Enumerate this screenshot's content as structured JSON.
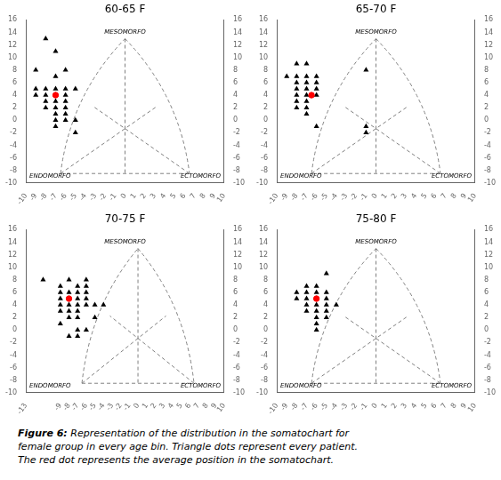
{
  "chart_data": [
    {
      "type": "scatter",
      "title": "60-65 F",
      "grid": false,
      "xlim": [
        -10,
        10
      ],
      "ylim": [
        -10,
        16
      ],
      "y2lim": [
        -10,
        16
      ],
      "xticks": [
        -10,
        -9,
        -8,
        -7,
        -6,
        -5,
        -4,
        -3,
        -2,
        -1,
        0,
        1,
        2,
        3,
        4,
        5,
        6,
        7,
        8,
        9,
        10
      ],
      "yticks": [
        -10,
        -8,
        -6,
        -4,
        -2,
        0,
        2,
        4,
        6,
        8,
        10,
        12,
        14,
        16
      ],
      "y2ticks": [
        -10,
        -8,
        -6,
        -4,
        -2,
        0,
        2,
        4,
        6,
        8,
        10,
        12,
        14,
        16
      ],
      "annotations": [
        "MESOMORFO",
        "ENDOMORFO",
        "ECTOMORFO"
      ],
      "series": [
        {
          "type": "bezier",
          "color": "gray",
          "line_style": "dashed",
          "values": [
            [
              -6.5,
              -8.5
            ],
            [
              -5.5,
              4
            ],
            [
              0,
              13
            ]
          ]
        },
        {
          "type": "bezier",
          "color": "gray",
          "line_style": "dashed",
          "values": [
            [
              0,
              13
            ],
            [
              5.5,
              4
            ],
            [
              6.5,
              -8.5
            ]
          ]
        },
        {
          "type": "line",
          "color": "gray",
          "line_style": "dashed",
          "values": [
            [
              -6.5,
              -8.5
            ],
            [
              6.5,
              -8.5
            ]
          ]
        },
        {
          "type": "line",
          "color": "gray",
          "line_style": "dashed",
          "values": [
            [
              0,
              13
            ],
            [
              0,
              -8.5
            ]
          ]
        },
        {
          "type": "line",
          "color": "gray",
          "line_style": "dashed",
          "values": [
            [
              -6.5,
              -8.5
            ],
            [
              3.25,
              2.25
            ]
          ]
        },
        {
          "type": "line",
          "color": "gray",
          "line_style": "dashed",
          "values": [
            [
              6.5,
              -8.5
            ],
            [
              -3.25,
              2.25
            ]
          ]
        },
        {
          "type": "scatter",
          "color": "black",
          "marker": "triangle",
          "values": [
            [
              -8,
              13
            ],
            [
              -7,
              11
            ],
            [
              -9,
              8
            ],
            [
              -7,
              7
            ],
            [
              -6,
              8
            ],
            [
              -9,
              5
            ],
            [
              -8,
              5
            ],
            [
              -7,
              5
            ],
            [
              -6,
              5
            ],
            [
              -5,
              5
            ],
            [
              -9,
              4
            ],
            [
              -8,
              4
            ],
            [
              -7,
              4
            ],
            [
              -6,
              4
            ],
            [
              -8,
              3
            ],
            [
              -7,
              3
            ],
            [
              -6,
              3
            ],
            [
              -8,
              2
            ],
            [
              -7,
              2
            ],
            [
              -6,
              2
            ],
            [
              -7,
              1
            ],
            [
              -6,
              1
            ],
            [
              -7,
              0
            ],
            [
              -6,
              0
            ],
            [
              -5,
              0
            ],
            [
              -7,
              -1
            ],
            [
              -5,
              -2
            ]
          ]
        },
        {
          "type": "scatter",
          "color": "red",
          "marker": "circle",
          "values": [
            [
              -7,
              4
            ]
          ]
        }
      ]
    },
    {
      "type": "scatter",
      "title": "65-70 F",
      "grid": false,
      "xlim": [
        -10,
        10
      ],
      "ylim": [
        -10,
        16
      ],
      "y2lim": [
        -10,
        16
      ],
      "xticks": [
        -10,
        -9,
        -8,
        -7,
        -6,
        -5,
        -4,
        -3,
        -2,
        -1,
        0,
        1,
        2,
        3,
        4,
        5,
        6,
        7,
        8,
        9,
        10
      ],
      "yticks": [
        -10,
        -8,
        -6,
        -4,
        -2,
        0,
        2,
        4,
        6,
        8,
        10,
        12,
        14,
        16
      ],
      "y2ticks": [
        -10,
        -8,
        -6,
        -4,
        -2,
        0,
        2,
        4,
        6,
        8,
        10,
        12,
        14,
        16
      ],
      "annotations": [
        "MESOMORFO",
        "ENDOMORFO",
        "ECTOMORFO"
      ],
      "series": [
        {
          "type": "bezier",
          "color": "gray",
          "line_style": "dashed",
          "values": [
            [
              -6.5,
              -8.5
            ],
            [
              -5.5,
              4
            ],
            [
              0,
              13
            ]
          ]
        },
        {
          "type": "bezier",
          "color": "gray",
          "line_style": "dashed",
          "values": [
            [
              0,
              13
            ],
            [
              5.5,
              4
            ],
            [
              6.5,
              -8.5
            ]
          ]
        },
        {
          "type": "line",
          "color": "gray",
          "line_style": "dashed",
          "values": [
            [
              -6.5,
              -8.5
            ],
            [
              6.5,
              -8.5
            ]
          ]
        },
        {
          "type": "line",
          "color": "gray",
          "line_style": "dashed",
          "values": [
            [
              0,
              13
            ],
            [
              0,
              -8.5
            ]
          ]
        },
        {
          "type": "line",
          "color": "gray",
          "line_style": "dashed",
          "values": [
            [
              -6.5,
              -8.5
            ],
            [
              3.25,
              2.25
            ]
          ]
        },
        {
          "type": "line",
          "color": "gray",
          "line_style": "dashed",
          "values": [
            [
              6.5,
              -8.5
            ],
            [
              -3.25,
              2.25
            ]
          ]
        },
        {
          "type": "scatter",
          "color": "black",
          "marker": "triangle",
          "values": [
            [
              -8,
              9
            ],
            [
              -7,
              9
            ],
            [
              -9,
              7
            ],
            [
              -8,
              7
            ],
            [
              -7,
              7
            ],
            [
              -6,
              7
            ],
            [
              -8,
              6
            ],
            [
              -7,
              6
            ],
            [
              -6,
              6
            ],
            [
              -8,
              5
            ],
            [
              -7,
              5
            ],
            [
              -6,
              5
            ],
            [
              -8,
              4
            ],
            [
              -7,
              4
            ],
            [
              -6,
              4
            ],
            [
              -8,
              3
            ],
            [
              -7,
              3
            ],
            [
              -8,
              2
            ],
            [
              -7,
              2
            ],
            [
              -7,
              1
            ],
            [
              -6,
              -1
            ],
            [
              -1,
              8
            ],
            [
              -1,
              -1
            ],
            [
              -1,
              -2
            ]
          ]
        },
        {
          "type": "scatter",
          "color": "red",
          "marker": "circle",
          "values": [
            [
              -6.5,
              4
            ]
          ]
        }
      ]
    },
    {
      "type": "scatter",
      "title": "70-75 F",
      "grid": false,
      "xlim": [
        -13,
        10
      ],
      "ylim": [
        -10,
        16
      ],
      "y2lim": [
        -10,
        16
      ],
      "xticks": [
        -13,
        -9,
        -8,
        -7,
        -6,
        -5,
        -4,
        -3,
        -2,
        -1,
        0,
        1,
        2,
        3,
        4,
        5,
        6,
        7,
        8,
        9,
        10
      ],
      "yticks": [
        -10,
        -8,
        -6,
        -4,
        -2,
        0,
        2,
        4,
        6,
        8,
        10,
        12,
        14,
        16
      ],
      "y2ticks": [
        -10,
        -8,
        -6,
        -4,
        -2,
        0,
        2,
        4,
        6,
        8,
        10,
        12,
        14,
        16
      ],
      "annotations": [
        "MESOMORFO",
        "ENDOMORFO",
        "ECTOMORFO"
      ],
      "series": [
        {
          "type": "bezier",
          "color": "gray",
          "line_style": "dashed",
          "values": [
            [
              -6.5,
              -8.5
            ],
            [
              -5.5,
              4
            ],
            [
              0,
              13
            ]
          ]
        },
        {
          "type": "bezier",
          "color": "gray",
          "line_style": "dashed",
          "values": [
            [
              0,
              13
            ],
            [
              5.5,
              4
            ],
            [
              6.5,
              -8.5
            ]
          ]
        },
        {
          "type": "line",
          "color": "gray",
          "line_style": "dashed",
          "values": [
            [
              -6.5,
              -8.5
            ],
            [
              6.5,
              -8.5
            ]
          ]
        },
        {
          "type": "line",
          "color": "gray",
          "line_style": "dashed",
          "values": [
            [
              0,
              13
            ],
            [
              0,
              -8.5
            ]
          ]
        },
        {
          "type": "line",
          "color": "gray",
          "line_style": "dashed",
          "values": [
            [
              -6.5,
              -8.5
            ],
            [
              3.25,
              2.25
            ]
          ]
        },
        {
          "type": "line",
          "color": "gray",
          "line_style": "dashed",
          "values": [
            [
              6.5,
              -8.5
            ],
            [
              -3.25,
              2.25
            ]
          ]
        },
        {
          "type": "scatter",
          "color": "black",
          "marker": "triangle",
          "values": [
            [
              -11,
              8
            ],
            [
              -8,
              8
            ],
            [
              -6,
              8
            ],
            [
              -9,
              7
            ],
            [
              -7,
              7
            ],
            [
              -6,
              7
            ],
            [
              -9,
              6
            ],
            [
              -8,
              6
            ],
            [
              -7,
              6
            ],
            [
              -6,
              6
            ],
            [
              -9,
              5
            ],
            [
              -8,
              5
            ],
            [
              -7,
              5
            ],
            [
              -6,
              5
            ],
            [
              -9,
              4
            ],
            [
              -8,
              4
            ],
            [
              -7,
              4
            ],
            [
              -6,
              4
            ],
            [
              -5,
              4
            ],
            [
              -4,
              4
            ],
            [
              -9,
              3
            ],
            [
              -8,
              3
            ],
            [
              -7,
              3
            ],
            [
              -8,
              2
            ],
            [
              -7,
              2
            ],
            [
              -5,
              2
            ],
            [
              -9,
              1
            ],
            [
              -7,
              0
            ],
            [
              -6,
              0
            ],
            [
              -8,
              -1
            ],
            [
              -7,
              -1
            ]
          ]
        },
        {
          "type": "scatter",
          "color": "red",
          "marker": "circle",
          "values": [
            [
              -8,
              5
            ]
          ]
        }
      ]
    },
    {
      "type": "scatter",
      "title": "75-80 F",
      "grid": false,
      "xlim": [
        -10,
        10
      ],
      "ylim": [
        -10,
        16
      ],
      "y2lim": [
        -10,
        16
      ],
      "xticks": [
        -10,
        -9,
        -8,
        -7,
        -6,
        -5,
        -4,
        -3,
        -2,
        -1,
        0,
        1,
        2,
        3,
        4,
        5,
        6,
        7,
        8,
        9,
        10
      ],
      "yticks": [
        -10,
        -8,
        -6,
        -4,
        -2,
        0,
        2,
        4,
        6,
        8,
        10,
        12,
        14,
        16
      ],
      "y2ticks": [
        -10,
        -8,
        -6,
        -4,
        -2,
        0,
        2,
        4,
        6,
        8,
        10,
        12,
        14,
        16
      ],
      "annotations": [
        "MESOMORFO",
        "ENDOMORFO",
        "ECTOMORFO"
      ],
      "series": [
        {
          "type": "bezier",
          "color": "gray",
          "line_style": "dashed",
          "values": [
            [
              -6.5,
              -8.5
            ],
            [
              -5.5,
              4
            ],
            [
              0,
              13
            ]
          ]
        },
        {
          "type": "bezier",
          "color": "gray",
          "line_style": "dashed",
          "values": [
            [
              0,
              13
            ],
            [
              5.5,
              4
            ],
            [
              6.5,
              -8.5
            ]
          ]
        },
        {
          "type": "line",
          "color": "gray",
          "line_style": "dashed",
          "values": [
            [
              -6.5,
              -8.5
            ],
            [
              6.5,
              -8.5
            ]
          ]
        },
        {
          "type": "line",
          "color": "gray",
          "line_style": "dashed",
          "values": [
            [
              0,
              13
            ],
            [
              0,
              -8.5
            ]
          ]
        },
        {
          "type": "line",
          "color": "gray",
          "line_style": "dashed",
          "values": [
            [
              -6.5,
              -8.5
            ],
            [
              3.25,
              2.25
            ]
          ]
        },
        {
          "type": "line",
          "color": "gray",
          "line_style": "dashed",
          "values": [
            [
              6.5,
              -8.5
            ],
            [
              -3.25,
              2.25
            ]
          ]
        },
        {
          "type": "scatter",
          "color": "black",
          "marker": "triangle",
          "values": [
            [
              -5,
              9
            ],
            [
              -7,
              7
            ],
            [
              -6,
              7
            ],
            [
              -8,
              6
            ],
            [
              -7,
              6
            ],
            [
              -6,
              6
            ],
            [
              -5,
              6
            ],
            [
              -8,
              5
            ],
            [
              -7,
              5
            ],
            [
              -6,
              5
            ],
            [
              -5,
              5
            ],
            [
              -7,
              4
            ],
            [
              -6,
              4
            ],
            [
              -5,
              4
            ],
            [
              -4,
              4
            ],
            [
              -7,
              3
            ],
            [
              -6,
              3
            ],
            [
              -5,
              3
            ],
            [
              -6,
              2
            ],
            [
              -5,
              2
            ],
            [
              -6,
              1
            ],
            [
              -6,
              0
            ]
          ]
        },
        {
          "type": "scatter",
          "color": "red",
          "marker": "circle",
          "values": [
            [
              -6,
              5
            ]
          ]
        }
      ]
    }
  ],
  "caption_title": "Figure 6:",
  "caption": "Representation of the distribution in the somatochart for\nfemale group in every age bin. Triangle dots represent every patient.\nThe red dot represents the average position in the somatochart."
}
